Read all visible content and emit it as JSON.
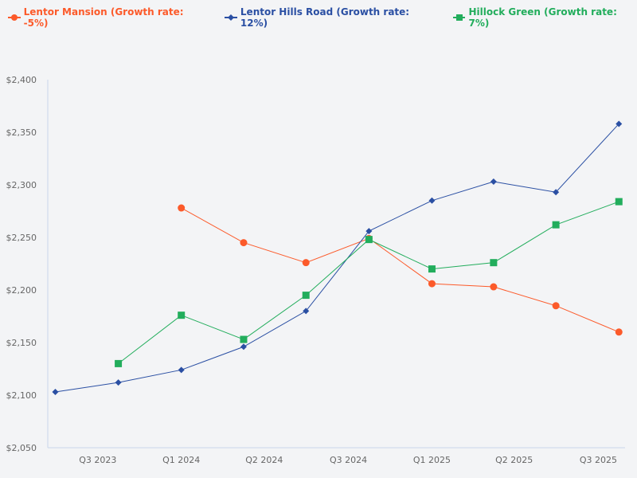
{
  "chart_data": {
    "type": "line",
    "title": "",
    "xlabel": "",
    "ylabel": "",
    "ylim": [
      2050,
      2400
    ],
    "yticks": [
      "$2,050",
      "$2,100",
      "$2,150",
      "$2,200",
      "$2,250",
      "$2,300",
      "$2,350",
      "$2,400"
    ],
    "ytick_values": [
      2050,
      2100,
      2150,
      2200,
      2250,
      2300,
      2350,
      2400
    ],
    "xlim": [
      "2023-06-20",
      "2025-10-10"
    ],
    "xticks": [
      {
        "label": "Q3 2023",
        "date": "2023-09-01"
      },
      {
        "label": "Q1 2024",
        "date": "2024-01-01"
      },
      {
        "label": "Q2 2024",
        "date": "2024-05-01"
      },
      {
        "label": "Q3 2024",
        "date": "2024-09-01"
      },
      {
        "label": "Q1 2025",
        "date": "2025-01-01"
      },
      {
        "label": "Q2 2025",
        "date": "2025-05-01"
      },
      {
        "label": "Q3 2025",
        "date": "2025-09-01"
      }
    ],
    "grid": false,
    "legend_position": "top-left",
    "x": [
      "2023-07-01",
      "2023-10-01",
      "2024-01-01",
      "2024-04-01",
      "2024-07-01",
      "2024-10-01",
      "2025-01-01",
      "2025-04-01",
      "2025-07-01",
      "2025-10-01"
    ],
    "series": [
      {
        "name": "Lentor Mansion (Growth rate: -5%)",
        "color": "#fc5a2a",
        "marker": "circle",
        "values": [
          null,
          null,
          2278,
          2245,
          2226,
          2249,
          2206,
          2203,
          2185,
          2160
        ]
      },
      {
        "name": "Lentor Hills Road (Growth rate: 12%)",
        "color": "#2a4fa3",
        "marker": "diamond",
        "values": [
          2103,
          2112,
          2124,
          2146,
          2180,
          2256,
          2285,
          2303,
          2293,
          2358
        ]
      },
      {
        "name": "Hillock Green (Growth rate: 7%)",
        "color": "#22ad5c",
        "marker": "square",
        "values": [
          null,
          2130,
          2176,
          2153,
          2195,
          2248,
          2220,
          2226,
          2262,
          2284
        ]
      }
    ]
  }
}
